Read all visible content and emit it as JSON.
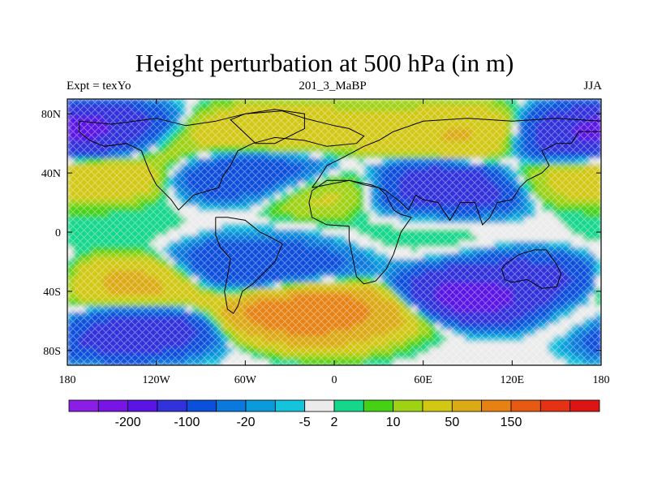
{
  "title": "Height perturbation at 500 hPa (in m)",
  "left_string": "Expt = texYo",
  "center_string": "201_3_MaBP",
  "right_string": "JJA",
  "map": {
    "projection": "cylindrical equidistant",
    "lon_range": [
      -180,
      180
    ],
    "lat_range": [
      -90,
      90
    ],
    "lat_ticks": [
      {
        "value": 80,
        "label": "80N"
      },
      {
        "value": 40,
        "label": "40N"
      },
      {
        "value": 0,
        "label": "0"
      },
      {
        "value": -40,
        "label": "40S"
      },
      {
        "value": -80,
        "label": "80S"
      }
    ],
    "lon_ticks": [
      {
        "value": -180,
        "label": "180"
      },
      {
        "value": -120,
        "label": "120W"
      },
      {
        "value": -60,
        "label": "60W"
      },
      {
        "value": 0,
        "label": "0"
      },
      {
        "value": 60,
        "label": "60E"
      },
      {
        "value": 120,
        "label": "120E"
      },
      {
        "value": 180,
        "label": "180"
      }
    ],
    "field_features": [
      {
        "lon": -160,
        "lat": 66,
        "value": -150
      },
      {
        "lon": -110,
        "lat": 58,
        "value": 40
      },
      {
        "lon": -40,
        "lat": 65,
        "value": 70
      },
      {
        "lon": 20,
        "lat": 68,
        "value": 30
      },
      {
        "lon": 90,
        "lat": 65,
        "value": 70
      },
      {
        "lon": 165,
        "lat": 63,
        "value": -120
      },
      {
        "lon": -65,
        "lat": 42,
        "value": -60
      },
      {
        "lon": -35,
        "lat": 43,
        "value": -40
      },
      {
        "lon": -165,
        "lat": 40,
        "value": 70
      },
      {
        "lon": 0,
        "lat": 30,
        "value": 40
      },
      {
        "lon": 70,
        "lat": 30,
        "value": -120
      },
      {
        "lon": 160,
        "lat": 38,
        "value": 25
      },
      {
        "lon": -150,
        "lat": 5,
        "value": 5
      },
      {
        "lon": 60,
        "lat": 2,
        "value": 5
      },
      {
        "lon": -60,
        "lat": -25,
        "value": -60
      },
      {
        "lon": -30,
        "lat": -25,
        "value": -30
      },
      {
        "lon": -135,
        "lat": -37,
        "value": 80
      },
      {
        "lon": -20,
        "lat": -52,
        "value": 180
      },
      {
        "lon": 10,
        "lat": -60,
        "value": 120
      },
      {
        "lon": 100,
        "lat": -44,
        "value": -170
      },
      {
        "lon": 130,
        "lat": -35,
        "value": -80
      },
      {
        "lon": -140,
        "lat": -65,
        "value": -110
      },
      {
        "lon": 170,
        "lat": -55,
        "value": 20
      },
      {
        "lon": 60,
        "lat": -75,
        "value": 0
      }
    ],
    "coastline_outline": [
      [
        [
          -172,
          75
        ],
        [
          -150,
          73
        ],
        [
          -120,
          77
        ],
        [
          -100,
          72
        ],
        [
          -80,
          75
        ],
        [
          -60,
          80
        ],
        [
          -35,
          82
        ],
        [
          -20,
          77
        ],
        [
          0,
          72
        ],
        [
          10,
          70
        ],
        [
          20,
          65
        ],
        [
          15,
          60
        ],
        [
          -5,
          58
        ],
        [
          -20,
          62
        ],
        [
          -40,
          64
        ],
        [
          -55,
          60
        ],
        [
          -65,
          55
        ],
        [
          -70,
          45
        ],
        [
          -75,
          38
        ],
        [
          -78,
          30
        ],
        [
          -85,
          28
        ],
        [
          -95,
          25
        ],
        [
          -100,
          20
        ],
        [
          -105,
          15
        ],
        [
          -110,
          22
        ],
        [
          -120,
          32
        ],
        [
          -125,
          42
        ],
        [
          -130,
          55
        ],
        [
          -140,
          60
        ],
        [
          -155,
          58
        ],
        [
          -165,
          62
        ],
        [
          -172,
          68
        ],
        [
          -172,
          75
        ]
      ],
      [
        [
          -15,
          30
        ],
        [
          10,
          35
        ],
        [
          25,
          32
        ],
        [
          30,
          30
        ],
        [
          35,
          28
        ],
        [
          45,
          20
        ],
        [
          50,
          15
        ],
        [
          55,
          25
        ],
        [
          60,
          22
        ],
        [
          70,
          20
        ],
        [
          78,
          8
        ],
        [
          85,
          20
        ],
        [
          95,
          20
        ],
        [
          100,
          5
        ],
        [
          105,
          10
        ],
        [
          110,
          20
        ],
        [
          120,
          22
        ],
        [
          125,
          30
        ],
        [
          130,
          35
        ],
        [
          140,
          40
        ],
        [
          145,
          45
        ],
        [
          140,
          55
        ],
        [
          150,
          60
        ],
        [
          160,
          60
        ],
        [
          165,
          68
        ],
        [
          180,
          68
        ],
        [
          180,
          75
        ],
        [
          150,
          77
        ],
        [
          120,
          75
        ],
        [
          90,
          77
        ],
        [
          60,
          75
        ],
        [
          40,
          68
        ],
        [
          30,
          62
        ],
        [
          20,
          58
        ],
        [
          5,
          50
        ],
        [
          -5,
          45
        ],
        [
          -10,
          37
        ],
        [
          -15,
          30
        ]
      ],
      [
        [
          -17,
          20
        ],
        [
          -15,
          10
        ],
        [
          -5,
          5
        ],
        [
          10,
          4
        ],
        [
          10,
          -5
        ],
        [
          12,
          -15
        ],
        [
          15,
          -30
        ],
        [
          20,
          -35
        ],
        [
          28,
          -33
        ],
        [
          35,
          -25
        ],
        [
          40,
          -15
        ],
        [
          45,
          0
        ],
        [
          52,
          10
        ],
        [
          45,
          12
        ],
        [
          40,
          15
        ],
        [
          35,
          25
        ],
        [
          30,
          30
        ],
        [
          20,
          32
        ],
        [
          10,
          35
        ],
        [
          -5,
          35
        ],
        [
          -15,
          28
        ],
        [
          -17,
          20
        ]
      ],
      [
        [
          -80,
          10
        ],
        [
          -72,
          10
        ],
        [
          -60,
          8
        ],
        [
          -50,
          0
        ],
        [
          -40,
          -5
        ],
        [
          -35,
          -8
        ],
        [
          -40,
          -20
        ],
        [
          -48,
          -28
        ],
        [
          -55,
          -35
        ],
        [
          -62,
          -40
        ],
        [
          -65,
          -50
        ],
        [
          -68,
          -55
        ],
        [
          -72,
          -52
        ],
        [
          -74,
          -40
        ],
        [
          -72,
          -30
        ],
        [
          -70,
          -18
        ],
        [
          -77,
          -10
        ],
        [
          -80,
          -2
        ],
        [
          -80,
          10
        ]
      ],
      [
        [
          115,
          -22
        ],
        [
          125,
          -15
        ],
        [
          135,
          -12
        ],
        [
          143,
          -12
        ],
        [
          150,
          -22
        ],
        [
          153,
          -28
        ],
        [
          150,
          -37
        ],
        [
          140,
          -38
        ],
        [
          130,
          -32
        ],
        [
          120,
          -34
        ],
        [
          115,
          -32
        ],
        [
          113,
          -25
        ],
        [
          115,
          -22
        ]
      ],
      [
        [
          -53,
          60
        ],
        [
          -40,
          60
        ],
        [
          -20,
          70
        ],
        [
          -20,
          80
        ],
        [
          -40,
          83
        ],
        [
          -60,
          80
        ],
        [
          -70,
          76
        ],
        [
          -53,
          60
        ]
      ]
    ]
  },
  "colorbar": {
    "colors": [
      "#8a1ee6",
      "#7814e6",
      "#5a14e6",
      "#3232dc",
      "#0a50dc",
      "#0a78dc",
      "#0a9bdc",
      "#14c3dc",
      "#ebebeb",
      "#14d78c",
      "#46d214",
      "#a0d214",
      "#d2c814",
      "#dcaa14",
      "#e68214",
      "#e65a14",
      "#e63214",
      "#dc1414"
    ],
    "labels": [
      "-200",
      "-100",
      "-20",
      "-5",
      "2",
      "10",
      "50",
      "150"
    ],
    "label_after_boundary": [
      2,
      4,
      6,
      8,
      9,
      11,
      13,
      15
    ]
  }
}
